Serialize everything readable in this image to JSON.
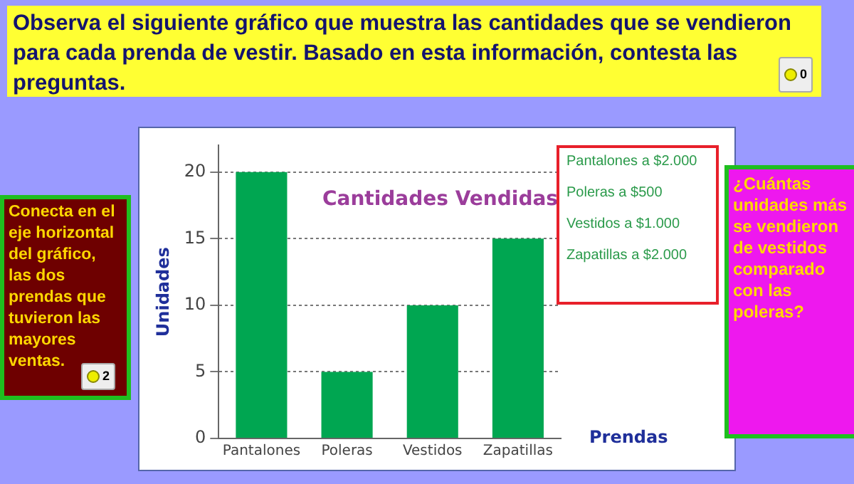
{
  "chart_data": {
    "type": "bar",
    "title": "Cantidades Vendidas",
    "xlabel": "Prendas",
    "ylabel": "Unidades",
    "categories": [
      "Pantalones",
      "Poleras",
      "Vestidos",
      "Zapatillas"
    ],
    "values": [
      20,
      5,
      10,
      15
    ],
    "color": "#00a651",
    "ylim": [
      0,
      22
    ],
    "yticks": [
      0,
      5,
      10,
      15,
      20
    ],
    "grid": "y",
    "annotations": [
      "Observa el siguiente gráfico que muestra las cantidades que se vendieron para cada prenda de vestir. Basado en esta información, contesta las preguntas.",
      "0",
      "Conecta en el eje horizontal del gráfico, las dos prendas que tuvieron las mayores ventas.",
      "2",
      "Pantalones a $2.000",
      "Poleras a $500",
      "Vestidos a $1.000",
      "Zapatillas a $2.000",
      "¿Cuántas unidades más se vendieron de vestidos comparado con las poleras?"
    ]
  }
}
